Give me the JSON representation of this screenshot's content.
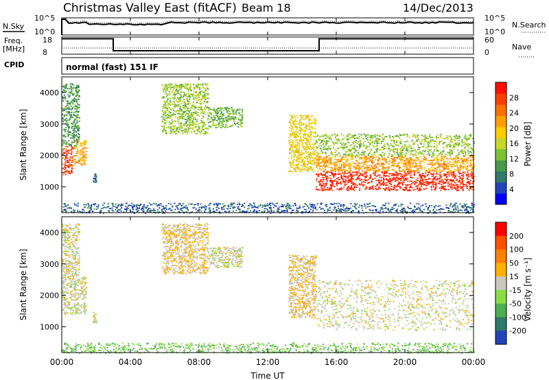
{
  "header": {
    "title": "Christmas Valley East (fitACF)",
    "beam": "Beam 18",
    "date": "14/Dec/2013"
  },
  "labels": {
    "nsky": "N.Sky",
    "nsearch": "N.Search",
    "freq": "Freq.",
    "freq_unit": "[MHz]",
    "nave": "Nave",
    "cpid": "CPID",
    "cpid_value": "normal (fast) 151 IF",
    "noise_tick_top": "10^5",
    "noise_tick_bottom": "10^0",
    "freq_tick_top": "18",
    "freq_tick_bottom": "8",
    "nave_tick_top": "60",
    "nave_tick_bottom": "0"
  },
  "chart_data": [
    {
      "type": "heatmap",
      "name": "power-panel",
      "ylabel": "Slant Range [km]",
      "xlabel": "",
      "ylim": [
        180,
        4500
      ],
      "xlim": [
        0,
        24
      ],
      "y_ticks": [
        "1000",
        "2000",
        "3000",
        "4000"
      ],
      "x_ticks": [],
      "colorbar": {
        "label": "Power [dB]",
        "ticks": [
          "4",
          "8",
          "12",
          "16",
          "20",
          "24",
          "28"
        ],
        "range": [
          0,
          32
        ],
        "colors": [
          "#0000ff",
          "#2244bb",
          "#2f7a6a",
          "#4a9a4a",
          "#7dc236",
          "#c8d62a",
          "#ffcc00",
          "#ffa000",
          "#ff7000",
          "#ff4000",
          "#ff1000"
        ]
      },
      "regions": [
        {
          "t0": 0.0,
          "t1": 0.6,
          "r0": 1400,
          "r1": 2300,
          "val": 28
        },
        {
          "t0": 0.6,
          "t1": 1.4,
          "r0": 1700,
          "r1": 2500,
          "val": 22
        },
        {
          "t0": 0.0,
          "t1": 1.0,
          "r0": 2300,
          "r1": 4300,
          "val": 10
        },
        {
          "t0": 1.8,
          "t1": 2.0,
          "r0": 1150,
          "r1": 1500,
          "val": 6
        },
        {
          "t0": 5.8,
          "t1": 8.5,
          "r0": 2700,
          "r1": 4300,
          "val": 14
        },
        {
          "t0": 8.5,
          "t1": 10.5,
          "r0": 2900,
          "r1": 3550,
          "val": 12
        },
        {
          "t0": 13.2,
          "t1": 14.8,
          "r0": 1500,
          "r1": 3300,
          "val": 18
        },
        {
          "t0": 14.8,
          "t1": 24.0,
          "r0": 900,
          "r1": 1500,
          "val": 30
        },
        {
          "t0": 14.8,
          "t1": 24.0,
          "r0": 1500,
          "r1": 2000,
          "val": 22
        },
        {
          "t0": 14.8,
          "t1": 24.0,
          "r0": 2000,
          "r1": 2700,
          "val": 14
        },
        {
          "t0": 0.0,
          "t1": 24.0,
          "r0": 180,
          "r1": 500,
          "val": 6
        }
      ]
    },
    {
      "type": "heatmap",
      "name": "velocity-panel",
      "ylabel": "Slant Range [km]",
      "xlabel": "Time UT",
      "ylim": [
        180,
        4500
      ],
      "xlim": [
        0,
        24
      ],
      "y_ticks": [
        "1000",
        "2000",
        "3000",
        "4000"
      ],
      "x_ticks": [
        "00:00",
        "04:00",
        "08:00",
        "12:00",
        "16:00",
        "20:00",
        "00:00"
      ],
      "colorbar": {
        "label": "Velocity [m s⁻¹]",
        "ticks": [
          "200",
          "100",
          "50",
          "15",
          "-15",
          "-50",
          "-100",
          "-200"
        ],
        "range": [
          -250,
          250
        ],
        "colors": [
          "#2244bb",
          "#2f7a6a",
          "#4caf50",
          "#88dd44",
          "#c8c8c0",
          "#ffb000",
          "#ff8000",
          "#ff5000",
          "#ff0000"
        ]
      },
      "regions": [
        {
          "t0": 0.0,
          "t1": 1.4,
          "r0": 1400,
          "r1": 2600,
          "val": 0
        },
        {
          "t0": 0.0,
          "t1": 1.0,
          "r0": 2600,
          "r1": 4300,
          "val": 5
        },
        {
          "t0": 1.8,
          "t1": 2.0,
          "r0": 1150,
          "r1": 1500,
          "val": 0
        },
        {
          "t0": 5.8,
          "t1": 8.5,
          "r0": 2700,
          "r1": 4300,
          "val": 30
        },
        {
          "t0": 8.5,
          "t1": 10.5,
          "r0": 2900,
          "r1": 3550,
          "val": 0
        },
        {
          "t0": 13.2,
          "t1": 14.8,
          "r0": 1300,
          "r1": 3300,
          "val": 30
        },
        {
          "t0": 14.8,
          "t1": 24.0,
          "r0": 900,
          "r1": 2500,
          "val": 0
        },
        {
          "t0": 0.0,
          "t1": 24.0,
          "r0": 180,
          "r1": 500,
          "val": -70
        }
      ]
    }
  ],
  "top_panels": {
    "nsky_range": [
      0,
      5
    ],
    "nsky_level": 3.6,
    "freq_series": [
      {
        "t": 0.0,
        "mhz": 17
      },
      {
        "t": 3.0,
        "mhz": 17
      },
      {
        "t": 3.0,
        "mhz": 10
      },
      {
        "t": 15.0,
        "mhz": 10
      },
      {
        "t": 15.0,
        "mhz": 17
      },
      {
        "t": 24.0,
        "mhz": 17
      }
    ]
  }
}
